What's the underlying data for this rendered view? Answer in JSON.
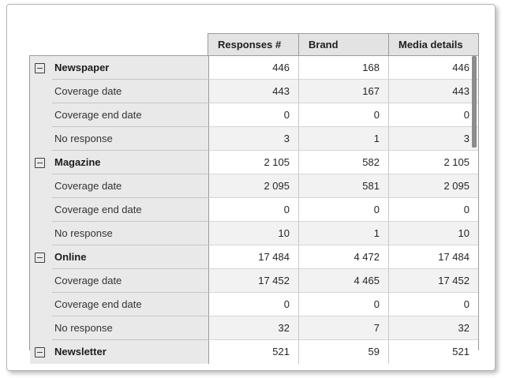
{
  "header": {
    "columns": [
      "Responses #",
      "Brand",
      "Media details"
    ]
  },
  "rows": [
    {
      "label": "Newspaper",
      "group": true,
      "values": [
        "446",
        "168",
        "446"
      ]
    },
    {
      "label": "Coverage date",
      "group": false,
      "values": [
        "443",
        "167",
        "443"
      ]
    },
    {
      "label": "Coverage end date",
      "group": false,
      "values": [
        "0",
        "0",
        "0"
      ]
    },
    {
      "label": "No response",
      "group": false,
      "values": [
        "3",
        "1",
        "3"
      ]
    },
    {
      "label": "Magazine",
      "group": true,
      "values": [
        "2 105",
        "582",
        "2 105"
      ]
    },
    {
      "label": "Coverage date",
      "group": false,
      "values": [
        "2 095",
        "581",
        "2 095"
      ]
    },
    {
      "label": "Coverage end date",
      "group": false,
      "values": [
        "0",
        "0",
        "0"
      ]
    },
    {
      "label": "No response",
      "group": false,
      "values": [
        "10",
        "1",
        "10"
      ]
    },
    {
      "label": "Online",
      "group": true,
      "values": [
        "17 484",
        "4 472",
        "17 484"
      ]
    },
    {
      "label": "Coverage date",
      "group": false,
      "values": [
        "17 452",
        "4 465",
        "17 452"
      ]
    },
    {
      "label": "Coverage end date",
      "group": false,
      "values": [
        "0",
        "0",
        "0"
      ]
    },
    {
      "label": "No response",
      "group": false,
      "values": [
        "32",
        "7",
        "32"
      ]
    },
    {
      "label": "Newsletter",
      "group": true,
      "values": [
        "521",
        "59",
        "521"
      ]
    }
  ],
  "scrollbar": {
    "vertical_visible": true
  },
  "colors": {
    "header_bg": "#e3e3e3",
    "label_column_bg": "#e9e9e9",
    "stripe_row_bg": "#f2f2f2",
    "border_dark": "#9b9b9b",
    "border_light": "#c9c9c9",
    "card_border": "#b5b5b5",
    "scrollbar_thumb": "#8c8c8c"
  }
}
